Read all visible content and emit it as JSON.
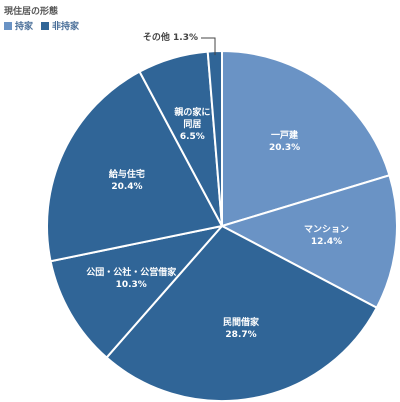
{
  "chart_data": {
    "type": "pie",
    "title": "現住居の形態",
    "legend": [
      {
        "name": "持家",
        "color": "#6a93c5"
      },
      {
        "name": "非持家",
        "color": "#306597"
      }
    ],
    "categories": [
      "一戸建",
      "マンション",
      "民間借家",
      "公団・公社・公営借家",
      "給与住宅",
      "親の家に\n同居",
      "その他"
    ],
    "values": [
      20.3,
      12.4,
      28.7,
      10.3,
      20.4,
      6.5,
      1.3
    ],
    "value_labels": [
      "20.3%",
      "12.4%",
      "28.7%",
      "10.3%",
      "20.4%",
      "6.5%",
      "1.3%"
    ],
    "colors": [
      "#6a93c5",
      "#6a93c5",
      "#306597",
      "#306597",
      "#306597",
      "#306597",
      "#306597"
    ]
  }
}
